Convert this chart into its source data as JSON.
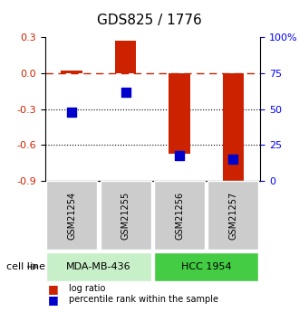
{
  "title": "GDS825 / 1776",
  "samples": [
    "GSM21254",
    "GSM21255",
    "GSM21256",
    "GSM21257"
  ],
  "log_ratios": [
    0.02,
    0.27,
    -0.67,
    -0.9
  ],
  "percentile_ranks": [
    48,
    62,
    18,
    15
  ],
  "ylim_left": [
    -0.9,
    0.3
  ],
  "ylim_right": [
    0,
    100
  ],
  "left_ticks": [
    0.3,
    0.0,
    -0.3,
    -0.6,
    -0.9
  ],
  "right_ticks": [
    100,
    75,
    50,
    25,
    0
  ],
  "right_tick_labels": [
    "100%",
    "75",
    "50",
    "25",
    "0"
  ],
  "cell_lines": [
    {
      "label": "MDA-MB-436",
      "samples": [
        0,
        1
      ],
      "color": "#c8f0c8"
    },
    {
      "label": "HCC 1954",
      "samples": [
        2,
        3
      ],
      "color": "#44cc44"
    }
  ],
  "bar_color": "#cc2200",
  "dot_color": "#0000cc",
  "dashed_line_color": "#cc2200",
  "dotted_line_color": "#000000",
  "bar_width": 0.4,
  "dot_size": 60,
  "cell_line_label": "cell line",
  "legend_bar_label": "log ratio",
  "legend_dot_label": "percentile rank within the sample",
  "title_fontsize": 11,
  "tick_fontsize": 8,
  "sample_fontsize": 7,
  "cell_line_fontsize": 8
}
